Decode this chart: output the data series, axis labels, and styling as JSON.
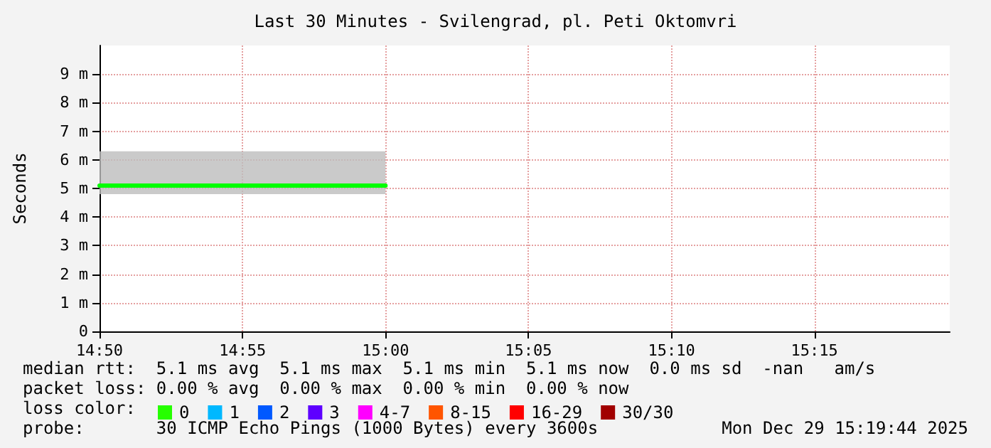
{
  "chart_data": {
    "type": "line",
    "title": "Last 30 Minutes - Svilengrad, pl. Peti Oktomvri",
    "ylabel": "Seconds",
    "xlim": [
      14.8333,
      15.3289
    ],
    "xticks": [
      {
        "value": 14.8333,
        "label": "14:50"
      },
      {
        "value": 14.9167,
        "label": "14:55"
      },
      {
        "value": 15,
        "label": "15:00"
      },
      {
        "value": 15.0833,
        "label": "15:05"
      },
      {
        "value": 15.1667,
        "label": "15:10"
      },
      {
        "value": 15.25,
        "label": "15:15"
      }
    ],
    "ylim": [
      0,
      10
    ],
    "yticks": [
      0,
      {
        "value": 1,
        "label": "1 m"
      },
      {
        "value": 2,
        "label": "2 m"
      },
      {
        "value": 3,
        "label": "3 m"
      },
      {
        "value": 4,
        "label": "4 m"
      },
      {
        "value": 5,
        "label": "5 m"
      },
      {
        "value": 6,
        "label": "6 m"
      },
      {
        "value": 7,
        "label": "7 m"
      },
      {
        "value": 8,
        "label": "8 m"
      },
      {
        "value": 9,
        "label": "9 m"
      }
    ],
    "grid": true,
    "legend": "bottom left",
    "marker": "none",
    "line_style": "solid",
    "series": [
      {
        "color": "#00ff00",
        "x": [
          14.8333,
          15
        ],
        "values": [
          5.1,
          5.1
        ],
        "lower": [
          4.8,
          4.8
        ],
        "upper": [
          6.3,
          6.3
        ]
      },
      {
        "name": "0",
        "color": "#26ff00",
        "values": [
          null
        ]
      },
      {
        "name": "1",
        "color": "#00b8ff",
        "values": [
          null
        ]
      },
      {
        "name": "2",
        "color": "#0059ff",
        "values": [
          null
        ]
      },
      {
        "name": "3",
        "color": "#5e00ff",
        "values": [
          null
        ]
      },
      {
        "name": "4-7",
        "color": "#ff00ff",
        "values": [
          null
        ]
      },
      {
        "name": "8-15",
        "color": "#ff5500",
        "values": [
          null
        ]
      },
      {
        "name": "16-29",
        "color": "#ff0000",
        "values": [
          null
        ]
      },
      {
        "name": "30/30",
        "color": "#a10000",
        "values": [
          null
        ]
      }
    ],
    "annotations": [
      "median rtt:  5.1 ms avg  5.1 ms max  5.1 ms min  5.1 ms now  0.0 ms sd  -nan   am/s",
      "packet loss: 0.00 % avg  0.00 % max  0.00 % min  0.00 % now",
      "loss color:",
      "probe:       30 ICMP Echo Pings (1000 Bytes) every 3600s",
      "Mon Dec 29 15:19:44 2025"
    ]
  }
}
